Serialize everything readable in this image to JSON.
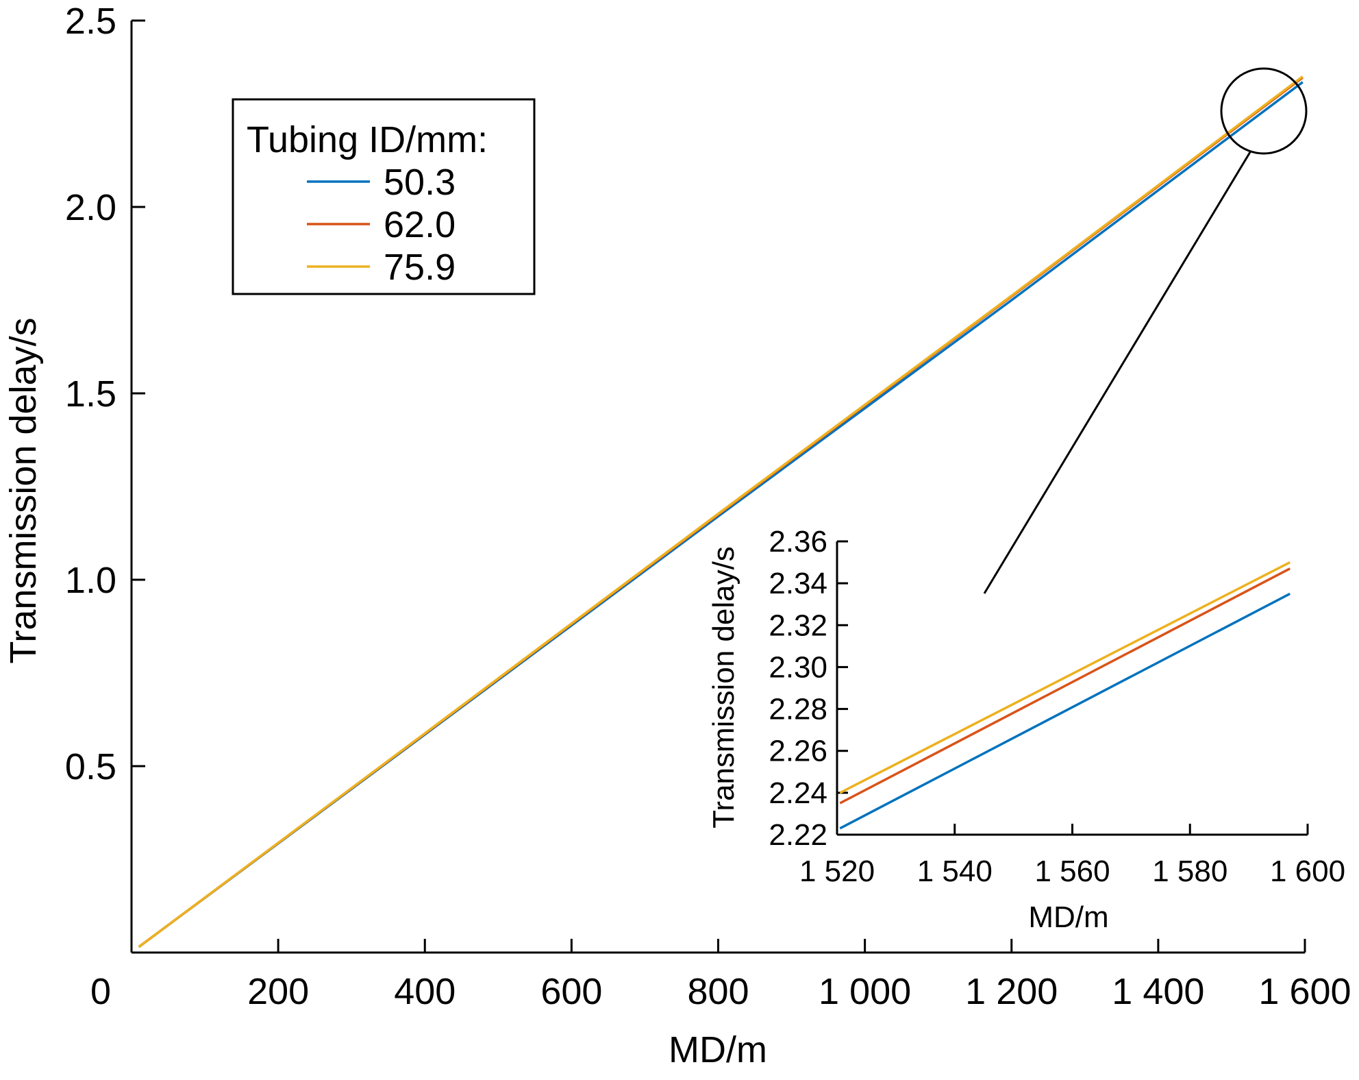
{
  "chart_data": [
    {
      "type": "line",
      "title": "",
      "xlabel": "MD/m",
      "ylabel": "Transmission delay/s",
      "xlim": [
        0,
        1600
      ],
      "ylim": [
        0,
        2.5
      ],
      "x_ticks": [
        0,
        200,
        400,
        600,
        800,
        1000,
        1200,
        1400,
        1600
      ],
      "x_tick_labels": [
        "0",
        "200",
        "400",
        "600",
        "800",
        "1 000",
        "1 200",
        "1 400",
        "1 600"
      ],
      "y_ticks": [
        0.5,
        1.0,
        1.5,
        2.0,
        2.5
      ],
      "y_tick_labels": [
        "0.5",
        "1.0",
        "1.5",
        "2.0",
        "2.5"
      ],
      "grid": false,
      "legend": {
        "title": "Tubing ID/mm:",
        "position": "top-left"
      },
      "series": [
        {
          "name": "50.3",
          "color": "#0072BD",
          "x": [
            10,
            400,
            800,
            1200,
            1597
          ],
          "y": [
            0.015,
            0.585,
            1.17,
            1.75,
            2.335
          ]
        },
        {
          "name": "62.0",
          "color": "#D95319",
          "x": [
            10,
            400,
            800,
            1200,
            1597
          ],
          "y": [
            0.015,
            0.587,
            1.175,
            1.76,
            2.347
          ]
        },
        {
          "name": "75.9",
          "color": "#EDB120",
          "x": [
            10,
            400,
            800,
            1200,
            1597
          ],
          "y": [
            0.015,
            0.588,
            1.177,
            1.762,
            2.35
          ]
        }
      ]
    },
    {
      "type": "line",
      "title": "",
      "xlabel": "MD/m",
      "ylabel": "Transmission delay/s",
      "xlim": [
        1520,
        1600
      ],
      "ylim": [
        2.22,
        2.36
      ],
      "x_ticks": [
        1520,
        1540,
        1560,
        1580,
        1600
      ],
      "x_tick_labels": [
        "1 520",
        "1 540",
        "1 560",
        "1 580",
        "1 600"
      ],
      "y_ticks": [
        2.22,
        2.24,
        2.26,
        2.28,
        2.3,
        2.32,
        2.34,
        2.36
      ],
      "y_tick_labels": [
        "2.22",
        "2.24",
        "2.26",
        "2.28",
        "2.30",
        "2.32",
        "2.34",
        "2.36"
      ],
      "grid": false,
      "series": [
        {
          "name": "50.3",
          "color": "#0072BD",
          "x": [
            1520.5,
            1597
          ],
          "y": [
            2.223,
            2.335
          ]
        },
        {
          "name": "62.0",
          "color": "#D95319",
          "x": [
            1520.5,
            1597
          ],
          "y": [
            2.235,
            2.347
          ]
        },
        {
          "name": "75.9",
          "color": "#EDB120",
          "x": [
            1520.5,
            1597
          ],
          "y": [
            2.24,
            2.35
          ]
        }
      ]
    }
  ]
}
